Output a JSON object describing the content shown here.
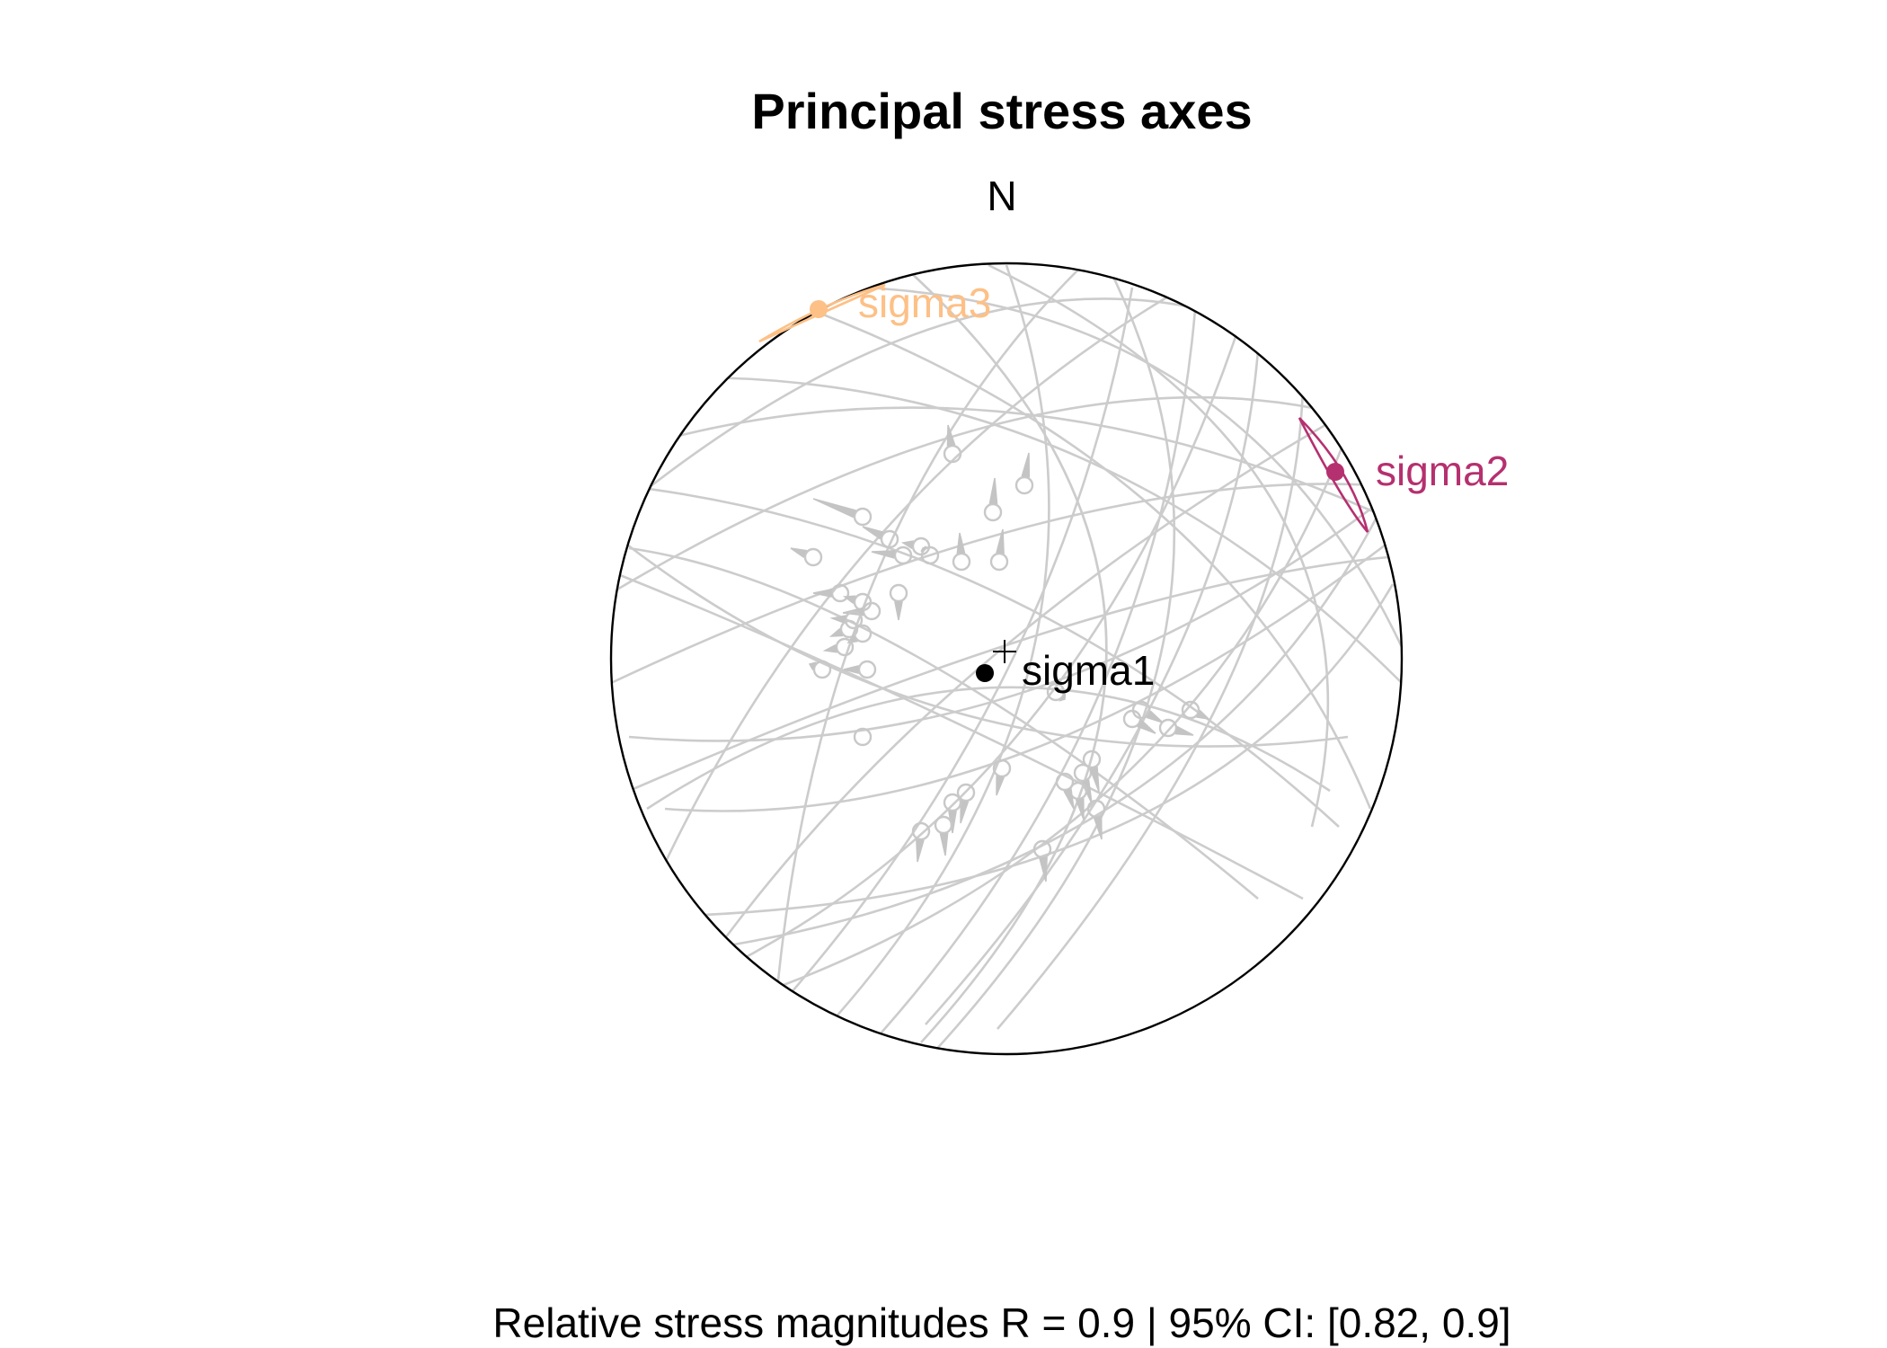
{
  "title": "Principal stress axes",
  "north_label": "N",
  "footer": "Relative stress magnitudes R = 0.9 | 95% CI: [0.82, 0.9]",
  "colors": {
    "sigma1": "#000000",
    "sigma2": "#b5306f",
    "sigma3": "#fdc086",
    "data": "#cccccc",
    "primitive": "#000000"
  },
  "axes": [
    {
      "name": "sigma1",
      "label": "sigma1"
    },
    {
      "name": "sigma2",
      "label": "sigma2"
    },
    {
      "name": "sigma3",
      "label": "sigma3"
    }
  ]
}
